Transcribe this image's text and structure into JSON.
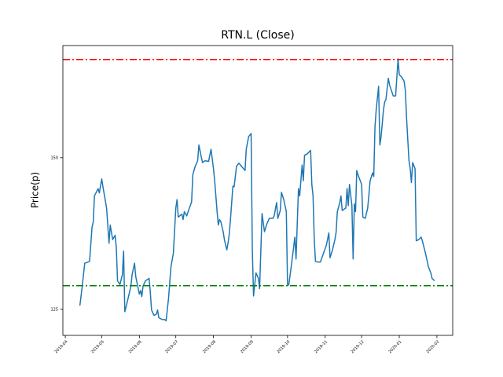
{
  "chart_data": {
    "type": "line",
    "title": "RTN.L (Close)",
    "y_label": "Price(p)",
    "x": [
      "2019-04-13",
      "2019-04-15",
      "2019-04-17",
      "2019-04-21",
      "2019-04-23",
      "2019-04-24",
      "2019-04-25",
      "2019-04-28",
      "2019-04-29",
      "2019-05-01",
      "2019-05-02",
      "2019-05-05",
      "2019-05-07",
      "2019-05-08",
      "2019-05-10",
      "2019-05-12",
      "2019-05-13",
      "2019-05-14",
      "2019-05-16",
      "2019-05-18",
      "2019-05-19",
      "2019-05-20",
      "2019-05-22",
      "2019-05-25",
      "2019-05-26",
      "2019-05-28",
      "2019-05-29",
      "2019-06-01",
      "2019-06-02",
      "2019-06-03",
      "2019-06-04",
      "2019-06-06",
      "2019-06-09",
      "2019-06-10",
      "2019-06-11",
      "2019-06-13",
      "2019-06-15",
      "2019-06-16",
      "2019-06-17",
      "2019-06-20",
      "2019-06-22",
      "2019-06-23",
      "2019-06-25",
      "2019-06-27",
      "2019-06-29",
      "2019-07-01",
      "2019-07-02",
      "2019-07-03",
      "2019-07-06",
      "2019-07-07",
      "2019-07-08",
      "2019-07-10",
      "2019-07-12",
      "2019-07-14",
      "2019-07-15",
      "2019-07-17",
      "2019-07-19",
      "2019-07-20",
      "2019-07-22",
      "2019-07-23",
      "2019-07-25",
      "2019-07-28",
      "2019-07-30",
      "2019-08-01",
      "2019-08-02",
      "2019-08-04",
      "2019-08-05",
      "2019-08-06",
      "2019-08-07",
      "2019-08-09",
      "2019-08-10",
      "2019-08-12",
      "2019-08-13",
      "2019-08-14",
      "2019-08-15",
      "2019-08-17",
      "2019-08-18",
      "2019-08-20",
      "2019-08-22",
      "2019-08-24",
      "2019-08-27",
      "2019-08-28",
      "2019-08-30",
      "2019-09-01",
      "2019-09-02",
      "2019-09-03",
      "2019-09-05",
      "2019-09-07",
      "2019-09-08",
      "2019-09-10",
      "2019-09-12",
      "2019-09-14",
      "2019-09-16",
      "2019-09-19",
      "2019-09-20",
      "2019-09-22",
      "2019-09-23",
      "2019-09-25",
      "2019-09-26",
      "2019-09-28",
      "2019-09-30",
      "2019-10-01",
      "2019-10-02",
      "2019-10-04",
      "2019-10-06",
      "2019-10-07",
      "2019-10-08",
      "2019-10-10",
      "2019-10-11",
      "2019-10-13",
      "2019-10-14",
      "2019-10-15",
      "2019-10-17",
      "2019-10-20",
      "2019-10-21",
      "2019-10-22",
      "2019-10-23",
      "2019-10-24",
      "2019-10-26",
      "2019-10-28",
      "2019-10-30",
      "2019-11-02",
      "2019-11-04",
      "2019-11-05",
      "2019-11-07",
      "2019-11-09",
      "2019-11-10",
      "2019-11-11",
      "2019-11-13",
      "2019-11-14",
      "2019-11-15",
      "2019-11-18",
      "2019-11-19",
      "2019-11-20",
      "2019-11-21",
      "2019-11-23",
      "2019-11-24",
      "2019-11-25",
      "2019-11-26",
      "2019-11-27",
      "2019-11-28",
      "2019-12-01",
      "2019-12-02",
      "2019-12-04",
      "2019-12-06",
      "2019-12-07",
      "2019-12-08",
      "2019-12-10",
      "2019-12-11",
      "2019-12-12",
      "2019-12-13",
      "2019-12-15",
      "2019-12-16",
      "2019-12-17",
      "2019-12-19",
      "2019-12-20",
      "2019-12-21",
      "2019-12-23",
      "2019-12-24",
      "2019-12-27",
      "2019-12-29",
      "2019-12-31",
      "2020-01-01",
      "2020-01-03",
      "2020-01-05",
      "2020-01-06",
      "2020-01-07",
      "2020-01-09",
      "2020-01-10",
      "2020-01-11",
      "2020-01-12",
      "2020-01-14",
      "2020-01-15",
      "2020-01-17",
      "2020-01-19",
      "2020-01-20",
      "2020-01-23",
      "2020-01-25",
      "2020-01-27",
      "2020-01-28",
      "2020-01-30"
    ],
    "series": [
      {
        "name": "Close",
        "color": "#1f77b4",
        "values": [
          125.6,
          128.9,
          132.6,
          132.9,
          138.5,
          139.4,
          143.7,
          144.9,
          144.2,
          146.5,
          145.2,
          141.7,
          135.9,
          138.9,
          136.5,
          137.2,
          135.2,
          129.7,
          129.1,
          130.7,
          134.6,
          124.6,
          126.2,
          128.8,
          130.7,
          132.6,
          130.4,
          127.5,
          128.1,
          127.1,
          128.8,
          129.7,
          130.1,
          127.8,
          124.9,
          124.0,
          124.2,
          124.9,
          123.6,
          123.3,
          123.3,
          123.1,
          126.8,
          132.0,
          134.3,
          141.7,
          143.1,
          140.2,
          140.7,
          139.8,
          141.1,
          140.4,
          141.6,
          142.7,
          147.2,
          148.6,
          149.5,
          152.1,
          150.1,
          149.2,
          149.5,
          149.4,
          151.4,
          148.2,
          146.2,
          141.1,
          138.9,
          139.8,
          139.5,
          137.8,
          136.5,
          134.8,
          135.9,
          137.4,
          139.8,
          145.3,
          145.2,
          148.6,
          149.1,
          148.6,
          147.9,
          151.4,
          153.5,
          154.0,
          134.8,
          127.2,
          131.0,
          130.1,
          128.4,
          140.8,
          137.8,
          139.1,
          140.0,
          140.0,
          140.4,
          142.6,
          140.0,
          141.3,
          144.3,
          143.0,
          141.1,
          129.0,
          129.0,
          132.0,
          135.2,
          136.9,
          133.3,
          144.9,
          143.7,
          148.8,
          146.2,
          150.4,
          150.6,
          151.2,
          145.6,
          143.7,
          136.5,
          132.9,
          132.8,
          132.8,
          133.9,
          135.6,
          137.6,
          133.5,
          134.8,
          136.5,
          137.7,
          141.1,
          142.6,
          143.7,
          141.3,
          141.7,
          144.9,
          142.1,
          145.6,
          142.1,
          133.3,
          142.4,
          141.1,
          147.9,
          147.2,
          145.6,
          140.2,
          140.0,
          141.7,
          143.9,
          146.2,
          147.5,
          146.9,
          155.1,
          157.9,
          161.8,
          152.1,
          153.4,
          157.9,
          159.2,
          159.6,
          163.1,
          162.0,
          160.2,
          160.2,
          166.3,
          163.7,
          163.3,
          162.6,
          161.1,
          156.6,
          149.5,
          148.2,
          145.9,
          149.2,
          148.2,
          136.3,
          136.5,
          136.9,
          136.3,
          133.9,
          132.0,
          131.0,
          130.1,
          129.7
        ]
      }
    ],
    "hlines": [
      {
        "value": 166.2,
        "color": "#ff0000"
      },
      {
        "value": 128.9,
        "color": "#008000"
      }
    ],
    "hline_style": "dashdot",
    "xlim": [
      "2019-03-30",
      "2020-02-14"
    ],
    "xticks": [
      {
        "value": "2019-04-01",
        "label": "2019-04"
      },
      {
        "value": "2019-05-01",
        "label": "2019-05"
      },
      {
        "value": "2019-06-01",
        "label": "2019-06"
      },
      {
        "value": "2019-07-01",
        "label": "2019-07"
      },
      {
        "value": "2019-08-01",
        "label": "2019-08"
      },
      {
        "value": "2019-09-01",
        "label": "2019-09"
      },
      {
        "value": "2019-10-01",
        "label": "2019-10"
      },
      {
        "value": "2019-11-01",
        "label": "2019-11"
      },
      {
        "value": "2019-12-01",
        "label": "2019-12"
      },
      {
        "value": "2020-01-01",
        "label": "2020-01"
      },
      {
        "value": "2020-02-01",
        "label": "2020-02"
      }
    ],
    "ylim": [
      120.7,
      168.5
    ],
    "yticks": [
      125,
      150
    ],
    "grid": false
  }
}
